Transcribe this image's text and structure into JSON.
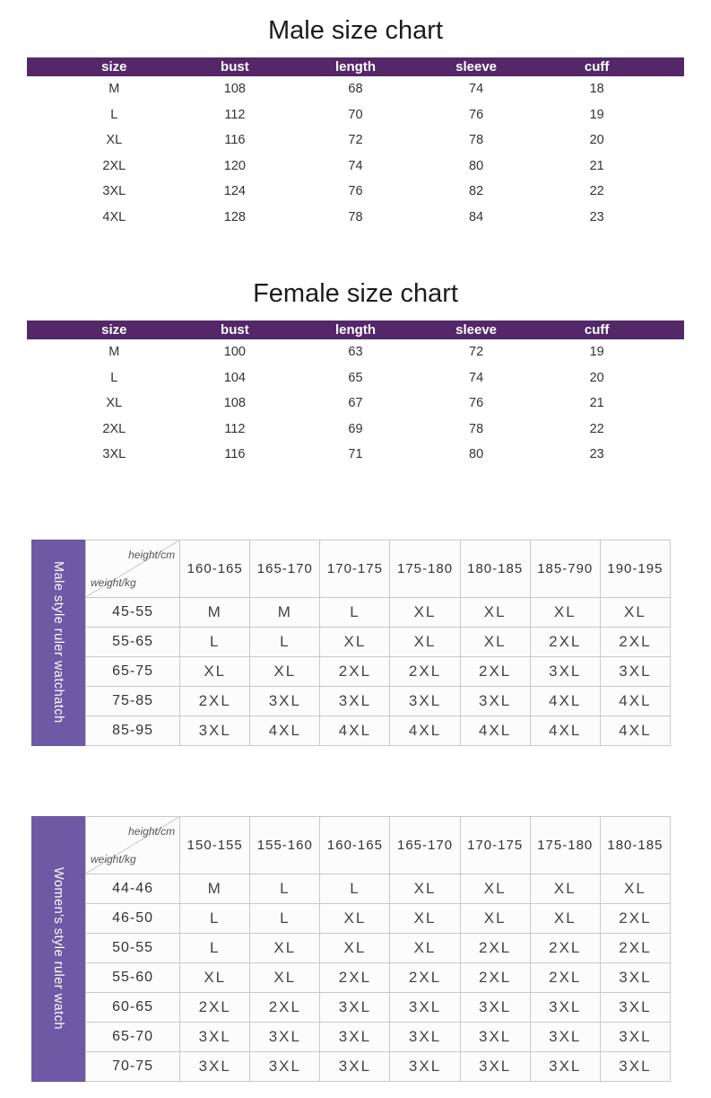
{
  "colors": {
    "header_purple": "#542769",
    "side_label_purple": "#6e5aa4",
    "grid_border": "#c9c9c9"
  },
  "male_size_chart": {
    "title": "Male size chart",
    "columns": [
      "size",
      "bust",
      "length",
      "sleeve",
      "cuff"
    ],
    "rows": [
      [
        "M",
        "108",
        "68",
        "74",
        "18"
      ],
      [
        "L",
        "112",
        "70",
        "76",
        "19"
      ],
      [
        "XL",
        "116",
        "72",
        "78",
        "20"
      ],
      [
        "2XL",
        "120",
        "74",
        "80",
        "21"
      ],
      [
        "3XL",
        "124",
        "76",
        "82",
        "22"
      ],
      [
        "4XL",
        "128",
        "78",
        "84",
        "23"
      ]
    ]
  },
  "female_size_chart": {
    "title": "Female size chart",
    "columns": [
      "size",
      "bust",
      "length",
      "sleeve",
      "cuff"
    ],
    "rows": [
      [
        "M",
        "100",
        "63",
        "72",
        "19"
      ],
      [
        "L",
        "104",
        "65",
        "74",
        "20"
      ],
      [
        "XL",
        "108",
        "67",
        "76",
        "21"
      ],
      [
        "2XL",
        "112",
        "69",
        "78",
        "22"
      ],
      [
        "3XL",
        "116",
        "71",
        "80",
        "23"
      ]
    ]
  },
  "male_matrix": {
    "side_label": "Male style ruler watchatch",
    "corner_top": "height/cm",
    "corner_bottom": "weight/kg",
    "height_columns": [
      "160-165",
      "165-170",
      "170-175",
      "175-180",
      "180-185",
      "185-790",
      "190-195"
    ],
    "rows": [
      {
        "weight": "45-55",
        "sizes": [
          "M",
          "M",
          "L",
          "XL",
          "XL",
          "XL",
          "XL"
        ]
      },
      {
        "weight": "55-65",
        "sizes": [
          "L",
          "L",
          "XL",
          "XL",
          "XL",
          "2XL",
          "2XL"
        ]
      },
      {
        "weight": "65-75",
        "sizes": [
          "XL",
          "XL",
          "2XL",
          "2XL",
          "2XL",
          "3XL",
          "3XL"
        ]
      },
      {
        "weight": "75-85",
        "sizes": [
          "2XL",
          "3XL",
          "3XL",
          "3XL",
          "3XL",
          "4XL",
          "4XL"
        ]
      },
      {
        "weight": "85-95",
        "sizes": [
          "3XL",
          "4XL",
          "4XL",
          "4XL",
          "4XL",
          "4XL",
          "4XL"
        ]
      }
    ]
  },
  "female_matrix": {
    "side_label": "Women's style ruler watch",
    "corner_top": "height/cm",
    "corner_bottom": "weight/kg",
    "height_columns": [
      "150-155",
      "155-160",
      "160-165",
      "165-170",
      "170-175",
      "175-180",
      "180-185"
    ],
    "rows": [
      {
        "weight": "44-46",
        "sizes": [
          "M",
          "L",
          "L",
          "XL",
          "XL",
          "XL",
          "XL"
        ]
      },
      {
        "weight": "46-50",
        "sizes": [
          "L",
          "L",
          "XL",
          "XL",
          "XL",
          "XL",
          "2XL"
        ]
      },
      {
        "weight": "50-55",
        "sizes": [
          "L",
          "XL",
          "XL",
          "XL",
          "2XL",
          "2XL",
          "2XL"
        ]
      },
      {
        "weight": "55-60",
        "sizes": [
          "XL",
          "XL",
          "2XL",
          "2XL",
          "2XL",
          "2XL",
          "3XL"
        ]
      },
      {
        "weight": "60-65",
        "sizes": [
          "2XL",
          "2XL",
          "3XL",
          "3XL",
          "3XL",
          "3XL",
          "3XL"
        ]
      },
      {
        "weight": "65-70",
        "sizes": [
          "3XL",
          "3XL",
          "3XL",
          "3XL",
          "3XL",
          "3XL",
          "3XL"
        ]
      },
      {
        "weight": "70-75",
        "sizes": [
          "3XL",
          "3XL",
          "3XL",
          "3XL",
          "3XL",
          "3XL",
          "3XL"
        ]
      }
    ]
  }
}
